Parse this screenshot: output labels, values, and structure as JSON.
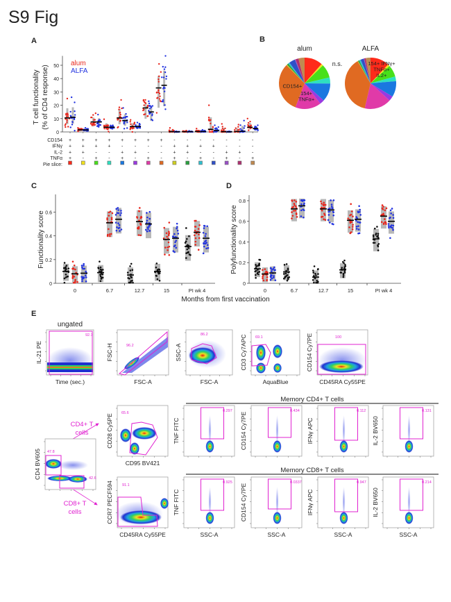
{
  "figure_title": "S9 Fig",
  "panel_labels": {
    "a": "A",
    "b": "B",
    "c": "C",
    "d": "D",
    "e": "E"
  },
  "colors": {
    "alum": "#e8281e",
    "alfa": "#2233e0",
    "baseline": "#111111",
    "gate": "#e020d0",
    "box": "#b8b8b8"
  },
  "chart_data": [
    {
      "panel": "A",
      "type": "scatter",
      "ylabel": [
        "T cell functionality",
        "(% of CD4 response)"
      ],
      "yticks": [
        "0",
        "10",
        "20",
        "30",
        "40",
        "50"
      ],
      "ylim": [
        0,
        57
      ],
      "legend": [
        {
          "name": "alum",
          "color": "#e8281e"
        },
        {
          "name": "ALFA",
          "color": "#2233e0"
        }
      ],
      "legend_placement": "top-left",
      "row_labels": [
        "CD154",
        "IFNγ",
        "IL-2",
        "TNFα",
        "Pie slice:"
      ],
      "categories": [
        {
          "signs": [
            "+",
            "+",
            "+",
            "+"
          ],
          "pie_color": "#ff2a1a"
        },
        {
          "signs": [
            "+",
            "+",
            "+",
            "-"
          ],
          "pie_color": "#f2e21c"
        },
        {
          "signs": [
            "+",
            "+",
            "-",
            "+"
          ],
          "pie_color": "#48e01a"
        },
        {
          "signs": [
            "+",
            "+",
            "-",
            "-"
          ],
          "pie_color": "#2ee0c0"
        },
        {
          "signs": [
            "+",
            "-",
            "+",
            "+"
          ],
          "pie_color": "#1a78e0"
        },
        {
          "signs": [
            "+",
            "-",
            "+",
            "-"
          ],
          "pie_color": "#9a3ae0"
        },
        {
          "signs": [
            "+",
            "-",
            "-",
            "+"
          ],
          "pie_color": "#e03aa8"
        },
        {
          "signs": [
            "+",
            "-",
            "-",
            "-"
          ],
          "pie_color": "#e06a22"
        },
        {
          "signs": [
            "-",
            "+",
            "+",
            "+"
          ],
          "pie_color": "#d0d020"
        },
        {
          "signs": [
            "-",
            "+",
            "+",
            "-"
          ],
          "pie_color": "#2aa040"
        },
        {
          "signs": [
            "-",
            "+",
            "-",
            "+"
          ],
          "pie_color": "#30c0d0"
        },
        {
          "signs": [
            "-",
            "+",
            "-",
            "-"
          ],
          "pie_color": "#3050c8"
        },
        {
          "signs": [
            "-",
            "-",
            "+",
            "+"
          ],
          "pie_color": "#9a50c8"
        },
        {
          "signs": [
            "-",
            "-",
            "+",
            "-"
          ],
          "pie_color": "#b03070"
        },
        {
          "signs": [
            "-",
            "-",
            "-",
            "+"
          ],
          "pie_color": "#c08a50"
        }
      ],
      "series": [
        {
          "name": "alum",
          "medians": [
            10.5,
            1.5,
            7.5,
            3.5,
            10.5,
            4,
            18,
            33,
            0.2,
            0.2,
            0.3,
            2,
            0.2,
            0.3,
            3.5
          ],
          "max": [
            25,
            3,
            14,
            9.5,
            24,
            9,
            24,
            51,
            3,
            1,
            2.5,
            20,
            6,
            5.5,
            10
          ]
        },
        {
          "name": "ALFA",
          "medians": [
            11,
            1.5,
            7.5,
            3.5,
            8.5,
            4,
            15,
            35,
            0.1,
            0.2,
            0.3,
            1,
            0.1,
            0.5,
            2.5
          ],
          "max": [
            26,
            3,
            13,
            5,
            18,
            7,
            23,
            57,
            0.5,
            0.8,
            1.5,
            5,
            0.5,
            8.5,
            5
          ]
        }
      ]
    },
    {
      "panel": "B",
      "type": "pie",
      "annotation": "n.s.",
      "pies": [
        {
          "title": "alum",
          "slice_colors_order": "matches panel A pie slice",
          "fractions": [
            0.12,
            0.012,
            0.09,
            0.04,
            0.12,
            0.03,
            0.17,
            0.33,
            0.005,
            0.01,
            0.01,
            0.04,
            0.005,
            0.02,
            0.04
          ],
          "labels": [
            {
              "slice": 7,
              "text": [
                "CD154+"
              ]
            },
            {
              "slice": 6,
              "text": [
                "154+",
                "TNFα+"
              ]
            }
          ]
        },
        {
          "title": "ALFA",
          "fractions": [
            0.12,
            0.012,
            0.075,
            0.03,
            0.1,
            0.03,
            0.17,
            0.38,
            0.003,
            0.008,
            0.01,
            0.02,
            0.003,
            0.01,
            0.03
          ],
          "labels": [
            {
              "slice": 0,
              "text": [
                "154+ IFNγ+",
                "TNFα+",
                "IL2+"
              ]
            }
          ]
        }
      ]
    },
    {
      "panel": "C",
      "type": "scatter",
      "ylabel": "Functionality score",
      "xlabel": "Months from first vaccination",
      "categories": [
        "0",
        "6.7",
        "12.7",
        "15",
        "PI wk 4"
      ],
      "yticks": [
        "0",
        "0.2",
        "0.4",
        "0.6"
      ],
      "ylim": [
        0,
        0.72
      ],
      "series": [
        {
          "group": "baseline",
          "medians": [
            0.1,
            0.09,
            0.07,
            0.1,
            0.31
          ]
        },
        {
          "group": "alum",
          "medians": [
            0.08,
            0.51,
            0.52,
            0.37,
            0.43
          ]
        },
        {
          "group": "ALFA",
          "medians": [
            0.085,
            0.54,
            0.5,
            0.38,
            0.38
          ]
        }
      ]
    },
    {
      "panel": "D",
      "type": "scatter",
      "ylabel": "Polyfunctionality score",
      "categories": [
        "0",
        "6.7",
        "12.7",
        "15",
        "PI wk 4"
      ],
      "yticks": [
        "0",
        "0.2",
        "0.4",
        "0.6",
        "0.8"
      ],
      "ylim": [
        0,
        0.82
      ],
      "series": [
        {
          "group": "baseline",
          "medians": [
            0.14,
            0.11,
            0.06,
            0.13,
            0.43
          ]
        },
        {
          "group": "alum",
          "medians": [
            0.09,
            0.72,
            0.72,
            0.61,
            0.65
          ]
        },
        {
          "group": "ALFA",
          "medians": [
            0.1,
            0.75,
            0.71,
            0.62,
            0.6
          ]
        }
      ]
    }
  ],
  "flow": {
    "ungated_label": "ungated",
    "cd4_arrow_label": [
      "CD4+ T",
      "cells"
    ],
    "cd8_arrow_label": [
      "CD8+ T",
      "cells"
    ],
    "memory_cd4_title": "Memory CD4+ T cells",
    "memory_cd8_title": "Memory CD8+ T cells",
    "plots": [
      {
        "id": "time",
        "ylabel": "IL-21 PE",
        "xlabel": "Time (sec.)",
        "gate": "92.7"
      },
      {
        "id": "fsc",
        "ylabel": "FSC-H",
        "xlabel": "FSC-A",
        "gate": "96.2"
      },
      {
        "id": "ssc",
        "ylabel": "SSC-A",
        "xlabel": "FSC-A",
        "gate": "86.2"
      },
      {
        "id": "cd3",
        "ylabel": "CD3 Cy7APC",
        "xlabel": "AquaBlue",
        "gate": "69.1"
      },
      {
        "id": "cd154",
        "ylabel": "CD154 Cy7PE",
        "xlabel": "CD45RA Cy55PE",
        "gate": "100"
      },
      {
        "id": "cd4",
        "ylabel": "CD4 BV605",
        "xlabel": "",
        "gate": "47.8",
        "gate2": "42.6"
      },
      {
        "id": "cd28",
        "ylabel": "CD28 Cy5PE",
        "xlabel": "CD95 BV421",
        "gate": "65.6"
      },
      {
        "id": "ccr7",
        "ylabel": "CCR7 PECF594",
        "xlabel": "CD45RA Cy55PE",
        "gate": "91.1"
      }
    ],
    "cd4_intracellular": [
      {
        "ylabel": "TNF FITC",
        "gate": "0.297"
      },
      {
        "ylabel": "CD154 Cy7PE",
        "gate": "0.434"
      },
      {
        "ylabel": "IFNγ APC",
        "gate": "0.112"
      },
      {
        "ylabel": "IL-2 BV650",
        "gate": "0.131"
      }
    ],
    "cd8_intracellular": [
      {
        "ylabel": "TNF FITC",
        "xlabel": "SSC-A",
        "gate": "0.925"
      },
      {
        "ylabel": "CD154 Cy7PE",
        "xlabel": "SSC-A",
        "gate": "0.0337"
      },
      {
        "ylabel": "IFNγ APC",
        "xlabel": "SSC-A",
        "gate": "0.947"
      },
      {
        "ylabel": "IL-2 BV650",
        "xlabel": "SSC-A",
        "gate": "0.214"
      }
    ]
  }
}
